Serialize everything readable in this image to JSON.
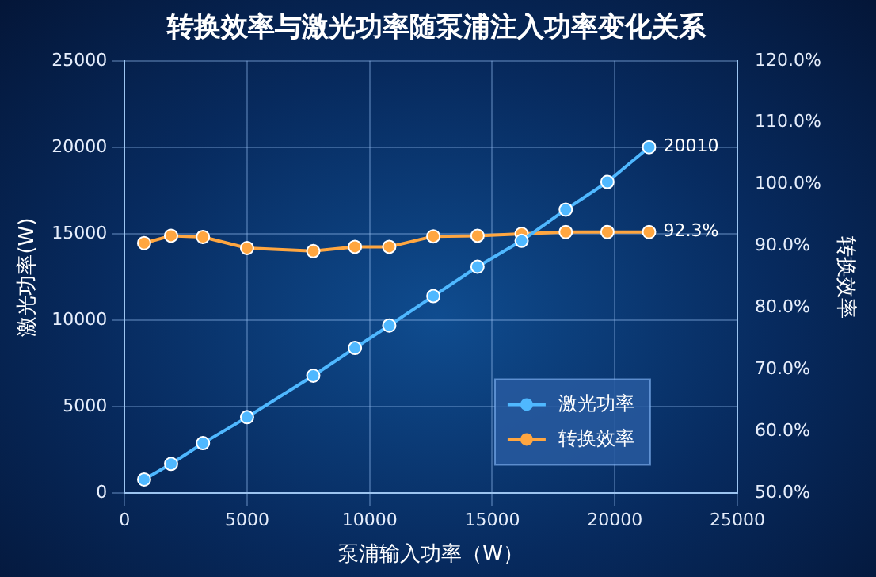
{
  "chart_data": {
    "type": "line",
    "title": "转换效率与激光功率随泵浦注入功率变化关系",
    "xlabel": "泵浦输入功率（W）",
    "ylabel": "激光功率(W)",
    "y2label": "转换效率",
    "xlim": [
      0,
      25000
    ],
    "xticks": [
      0,
      5000,
      10000,
      15000,
      20000,
      25000
    ],
    "ylim": [
      0,
      25000
    ],
    "yticks": [
      0,
      5000,
      10000,
      15000,
      20000,
      25000
    ],
    "y2lim": [
      50,
      120
    ],
    "y2ticks": [
      {
        "value": 50,
        "label": "50.0%"
      },
      {
        "value": 60,
        "label": "60.0%"
      },
      {
        "value": 70,
        "label": "70.0%"
      },
      {
        "value": 80,
        "label": "80.0%"
      },
      {
        "value": 90,
        "label": "90.0%"
      },
      {
        "value": 100,
        "label": "100.0%"
      },
      {
        "value": 110,
        "label": "110.0%"
      },
      {
        "value": 120,
        "label": "120.0%"
      }
    ],
    "x": [
      800,
      1900,
      3200,
      5000,
      7700,
      9400,
      10800,
      12600,
      14400,
      16200,
      18000,
      19700,
      21400
    ],
    "series": [
      {
        "name": "激光功率",
        "color": "#4fb8ff",
        "values": [
          800,
          1700,
          2900,
          4400,
          6800,
          8400,
          9700,
          11400,
          13100,
          14600,
          16400,
          18000,
          20010
        ],
        "value_labels": [
          null,
          null,
          null,
          null,
          null,
          null,
          null,
          null,
          null,
          null,
          null,
          null,
          "20010"
        ]
      },
      {
        "name": "转换效率",
        "color": "#ffa640",
        "axis": "y2",
        "values": [
          90.5,
          91.7,
          91.5,
          89.7,
          89.2,
          89.9,
          89.9,
          91.6,
          91.7,
          92.0,
          92.3,
          92.3,
          92.3
        ],
        "value_labels": [
          null,
          null,
          null,
          null,
          null,
          null,
          null,
          null,
          null,
          null,
          null,
          null,
          "92.3%"
        ]
      }
    ],
    "grid": true,
    "legend": "bottom right",
    "marker": "circle",
    "line_style": "solid"
  }
}
